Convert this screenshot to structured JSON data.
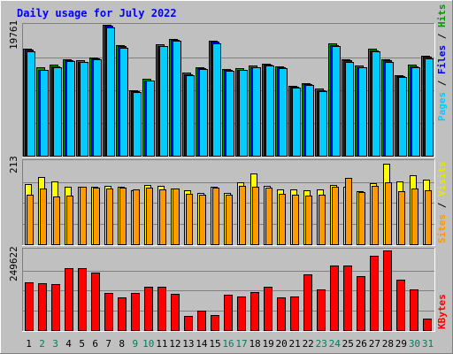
{
  "chart_data": {
    "type": "bar",
    "title": "Daily usage for July 2022",
    "categories": [
      "1",
      "2",
      "3",
      "4",
      "5",
      "6",
      "7",
      "8",
      "9",
      "10",
      "11",
      "12",
      "13",
      "14",
      "15",
      "16",
      "17",
      "18",
      "19",
      "20",
      "21",
      "22",
      "23",
      "24",
      "25",
      "26",
      "27",
      "28",
      "29",
      "30",
      "31"
    ],
    "weekend_days": [
      "2",
      "3",
      "9",
      "10",
      "16",
      "17",
      "23",
      "24",
      "30",
      "31"
    ],
    "panels": [
      {
        "id": "top",
        "max_label": "19761",
        "ylim": [
          0,
          19761
        ],
        "legend": [
          "Pages",
          "/",
          "Files",
          "/",
          "Hits"
        ],
        "series": [
          {
            "name": "Hits",
            "color": "#009900",
            "values": [
              16200,
              13300,
              13700,
              14500,
              14400,
              14800,
              19761,
              16700,
              9900,
              11600,
              16800,
              17600,
              12500,
              13400,
              17400,
              13100,
              13200,
              13600,
              13900,
              13500,
              10600,
              11000,
              10100,
              16900,
              14600,
              13600,
              16100,
              14600,
              12200,
              13700,
              15100
            ]
          },
          {
            "name": "Files",
            "color": "#0000ff",
            "values": [
              16000,
              13000,
              13500,
              14400,
              14200,
              14700,
              19600,
              16500,
              9700,
              11400,
              16600,
              17500,
              12300,
              13200,
              17200,
              12900,
              13000,
              13400,
              13700,
              13300,
              10400,
              10800,
              9900,
              16700,
              14400,
              13400,
              15900,
              14400,
              12000,
              13500,
              14900
            ]
          },
          {
            "name": "Pages",
            "color": "#00ccff",
            "values": [
              15800,
              12900,
              13400,
              14300,
              14100,
              14600,
              19400,
              16300,
              9600,
              11300,
              16500,
              17300,
              12200,
              13100,
              17000,
              12800,
              12900,
              13300,
              13600,
              13200,
              10300,
              10700,
              9800,
              16500,
              14200,
              13300,
              15700,
              14200,
              11900,
              13300,
              14700
            ]
          }
        ]
      },
      {
        "id": "middle",
        "max_label": "213",
        "ylim": [
          0,
          213
        ],
        "legend": [
          "Sites",
          "/",
          "Visits"
        ],
        "series": [
          {
            "name": "Visits",
            "color": "#ffff00",
            "values": [
              155,
              173,
              162,
              147,
              148,
              148,
              150,
              147,
              138,
              152,
              150,
              143,
              138,
              132,
              147,
              132,
              158,
              182,
              150,
              140,
              140,
              138,
              140,
              152,
              148,
              135,
              157,
              206,
              160,
              176,
              166
            ]
          },
          {
            "name": "Sites",
            "color": "#ff9900",
            "values": [
              127,
              142,
              123,
              125,
              148,
              145,
              142,
              145,
              140,
              145,
              140,
              142,
              130,
              127,
              145,
              127,
              150,
              148,
              145,
              130,
              128,
              125,
              128,
              148,
              170,
              133,
              150,
              159,
              136,
              143,
              138
            ]
          }
        ]
      },
      {
        "id": "bottom",
        "max_label": "249622",
        "ylim": [
          0,
          249622
        ],
        "legend": [
          "KBytes"
        ],
        "series": [
          {
            "name": "KBytes",
            "color": "#ff0000",
            "values": [
              150000,
              147000,
              143000,
              193000,
              193000,
              179000,
              116000,
              103000,
              117000,
              135000,
              135000,
              115000,
              45000,
              61000,
              47000,
              110000,
              106000,
              119000,
              136000,
              103000,
              106000,
              175000,
              128000,
              202000,
              202000,
              169000,
              234000,
              249622,
              157000,
              127000,
              37000
            ]
          }
        ]
      }
    ]
  }
}
